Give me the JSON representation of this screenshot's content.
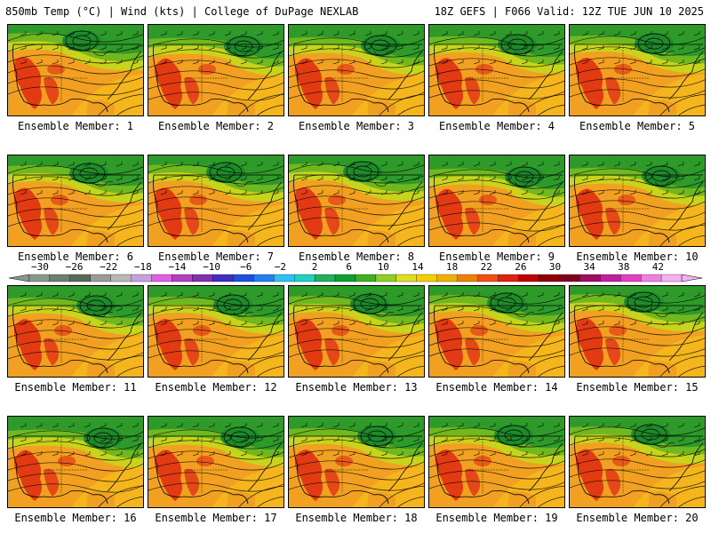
{
  "header": {
    "left": "850mb Temp (°C) | Wind (kts) | College of DuPage NEXLAB",
    "right": "18Z GEFS | F066 Valid: 12Z TUE JUN 10 2025"
  },
  "members": [
    {
      "label": "Ensemble Member: 1"
    },
    {
      "label": "Ensemble Member: 2"
    },
    {
      "label": "Ensemble Member: 3"
    },
    {
      "label": "Ensemble Member: 4"
    },
    {
      "label": "Ensemble Member: 5"
    },
    {
      "label": "Ensemble Member: 6"
    },
    {
      "label": "Ensemble Member: 7"
    },
    {
      "label": "Ensemble Member: 8"
    },
    {
      "label": "Ensemble Member: 9"
    },
    {
      "label": "Ensemble Member: 10"
    },
    {
      "label": "Ensemble Member: 11"
    },
    {
      "label": "Ensemble Member: 12"
    },
    {
      "label": "Ensemble Member: 13"
    },
    {
      "label": "Ensemble Member: 14"
    },
    {
      "label": "Ensemble Member: 15"
    },
    {
      "label": "Ensemble Member: 16"
    },
    {
      "label": "Ensemble Member: 17"
    },
    {
      "label": "Ensemble Member: 18"
    },
    {
      "label": "Ensemble Member: 19"
    },
    {
      "label": "Ensemble Member: 20"
    }
  ],
  "colorbar": {
    "ticks": [
      "−30",
      "−26",
      "−22",
      "−18",
      "−14",
      "−10",
      "−6",
      "−2",
      "2",
      "6",
      "10",
      "14",
      "18",
      "22",
      "26",
      "30",
      "34",
      "38",
      "42"
    ],
    "colors": [
      "#8a9a8a",
      "#6f7f6f",
      "#5a6a5a",
      "#9a9a9a",
      "#b8b8b8",
      "#c8a0e0",
      "#e060e0",
      "#b040c0",
      "#8030b0",
      "#4030c0",
      "#2050e0",
      "#2080f0",
      "#30c0f0",
      "#20d0c0",
      "#20b060",
      "#10a030",
      "#40b020",
      "#90d020",
      "#e0e020",
      "#f0d000",
      "#f0b000",
      "#f08000",
      "#f05010",
      "#e02010",
      "#c00000",
      "#900000",
      "#800020",
      "#a01060",
      "#c020a0",
      "#e040c0",
      "#f080e0",
      "#f8b0f0"
    ]
  }
}
